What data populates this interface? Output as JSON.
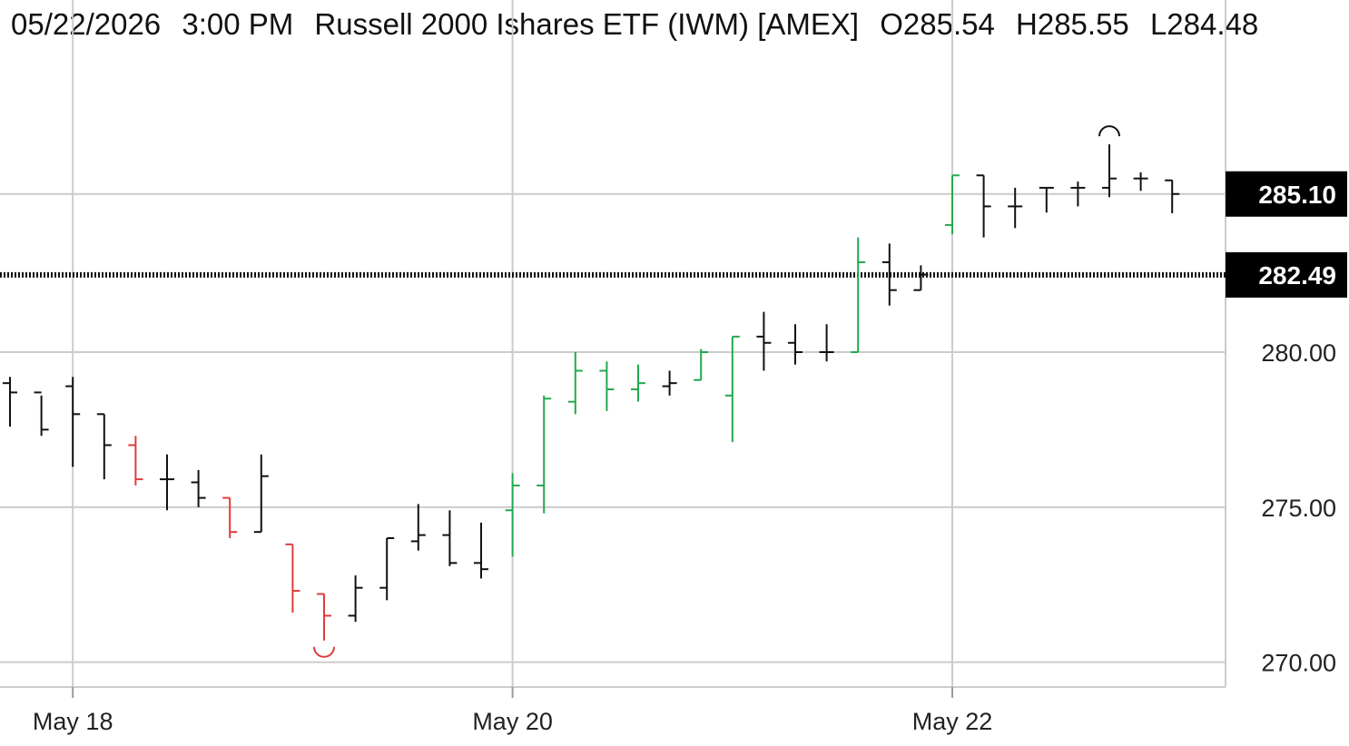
{
  "header": {
    "date": "05/22/2026",
    "time": "3:00 PM",
    "instrument": "Russell 2000 Ishares ETF (IWM) [AMEX]",
    "open": "O285.54",
    "high": "H285.55",
    "low": "L284.48"
  },
  "colors": {
    "up": "#22a94f",
    "down": "#e03b3b",
    "neutral": "#111111",
    "grid": "#cccccc",
    "tag_bg": "#000000"
  },
  "chart_data": {
    "type": "ohlc",
    "price_ticks": [
      "270.00",
      "275.00",
      "280.00"
    ],
    "date_ticks": [
      {
        "label": "May 18",
        "index": 2
      },
      {
        "label": "May 20",
        "index": 16
      },
      {
        "label": "May 22",
        "index": 30
      }
    ],
    "ylim": [
      269.2,
      289.6
    ],
    "current_price_tag": "285.10",
    "reference_line_tag": "282.49",
    "bars": [
      {
        "o": 279.0,
        "h": 279.2,
        "l": 277.6,
        "c": 278.7,
        "color": "neutral"
      },
      {
        "o": 278.7,
        "h": 278.6,
        "l": 277.3,
        "c": 277.5,
        "color": "neutral"
      },
      {
        "o": 278.9,
        "h": 279.2,
        "l": 276.3,
        "c": 278.0,
        "color": "neutral"
      },
      {
        "o": 278.0,
        "h": 278.0,
        "l": 275.9,
        "c": 277.0,
        "color": "neutral"
      },
      {
        "o": 277.0,
        "h": 277.3,
        "l": 275.7,
        "c": 275.9,
        "color": "down"
      },
      {
        "o": 275.9,
        "h": 276.7,
        "l": 274.9,
        "c": 275.9,
        "color": "neutral"
      },
      {
        "o": 275.8,
        "h": 276.2,
        "l": 275.0,
        "c": 275.3,
        "color": "neutral"
      },
      {
        "o": 275.3,
        "h": 275.3,
        "l": 274.0,
        "c": 274.2,
        "color": "down"
      },
      {
        "o": 274.2,
        "h": 276.7,
        "l": 274.2,
        "c": 276.0,
        "color": "neutral"
      },
      {
        "o": 273.8,
        "h": 273.8,
        "l": 271.6,
        "c": 272.3,
        "color": "down"
      },
      {
        "o": 272.2,
        "h": 272.2,
        "l": 270.7,
        "c": 271.5,
        "color": "down"
      },
      {
        "o": 271.5,
        "h": 272.8,
        "l": 271.3,
        "c": 272.4,
        "color": "neutral"
      },
      {
        "o": 272.4,
        "h": 274.0,
        "l": 272.0,
        "c": 274.0,
        "color": "neutral"
      },
      {
        "o": 273.9,
        "h": 275.1,
        "l": 273.6,
        "c": 274.1,
        "color": "neutral"
      },
      {
        "o": 274.1,
        "h": 274.9,
        "l": 273.1,
        "c": 273.2,
        "color": "neutral"
      },
      {
        "o": 273.2,
        "h": 274.5,
        "l": 272.7,
        "c": 273.0,
        "color": "neutral"
      },
      {
        "o": 274.9,
        "h": 276.1,
        "l": 273.4,
        "c": 275.7,
        "color": "up"
      },
      {
        "o": 275.7,
        "h": 278.6,
        "l": 274.8,
        "c": 278.5,
        "color": "up"
      },
      {
        "o": 278.4,
        "h": 280.0,
        "l": 278.0,
        "c": 279.4,
        "color": "up"
      },
      {
        "o": 279.4,
        "h": 279.7,
        "l": 278.1,
        "c": 278.8,
        "color": "up"
      },
      {
        "o": 278.8,
        "h": 279.6,
        "l": 278.4,
        "c": 279.0,
        "color": "up"
      },
      {
        "o": 278.9,
        "h": 279.4,
        "l": 278.6,
        "c": 279.0,
        "color": "neutral"
      },
      {
        "o": 279.1,
        "h": 280.1,
        "l": 279.1,
        "c": 280.0,
        "color": "up"
      },
      {
        "o": 278.6,
        "h": 280.5,
        "l": 277.1,
        "c": 280.5,
        "color": "up"
      },
      {
        "o": 280.5,
        "h": 281.3,
        "l": 279.4,
        "c": 280.3,
        "color": "neutral"
      },
      {
        "o": 280.3,
        "h": 280.9,
        "l": 279.6,
        "c": 280.0,
        "color": "neutral"
      },
      {
        "o": 280.0,
        "h": 280.9,
        "l": 279.7,
        "c": 280.0,
        "color": "neutral"
      },
      {
        "o": 280.0,
        "h": 283.7,
        "l": 280.0,
        "c": 282.9,
        "color": "up"
      },
      {
        "o": 282.9,
        "h": 283.5,
        "l": 281.5,
        "c": 282.0,
        "color": "neutral"
      },
      {
        "o": 282.0,
        "h": 282.8,
        "l": 282.0,
        "c": 282.5,
        "color": "neutral"
      },
      {
        "o": 284.1,
        "h": 285.7,
        "l": 283.8,
        "c": 285.7,
        "color": "up"
      },
      {
        "o": 285.7,
        "h": 285.7,
        "l": 283.7,
        "c": 284.7,
        "color": "neutral"
      },
      {
        "o": 284.7,
        "h": 285.3,
        "l": 284.0,
        "c": 284.7,
        "color": "neutral"
      },
      {
        "o": 285.3,
        "h": 285.3,
        "l": 284.5,
        "c": 285.3,
        "color": "neutral"
      },
      {
        "o": 285.3,
        "h": 285.5,
        "l": 284.7,
        "c": 285.3,
        "color": "neutral"
      },
      {
        "o": 285.3,
        "h": 286.7,
        "l": 285.0,
        "c": 285.6,
        "color": "neutral"
      },
      {
        "o": 285.6,
        "h": 285.8,
        "l": 285.2,
        "c": 285.6,
        "color": "neutral"
      },
      {
        "o": 285.54,
        "h": 285.55,
        "l": 284.48,
        "c": 285.1,
        "color": "neutral"
      }
    ],
    "swing_markers": [
      {
        "type": "high",
        "index": 35
      },
      {
        "type": "low",
        "index": 10
      }
    ]
  }
}
